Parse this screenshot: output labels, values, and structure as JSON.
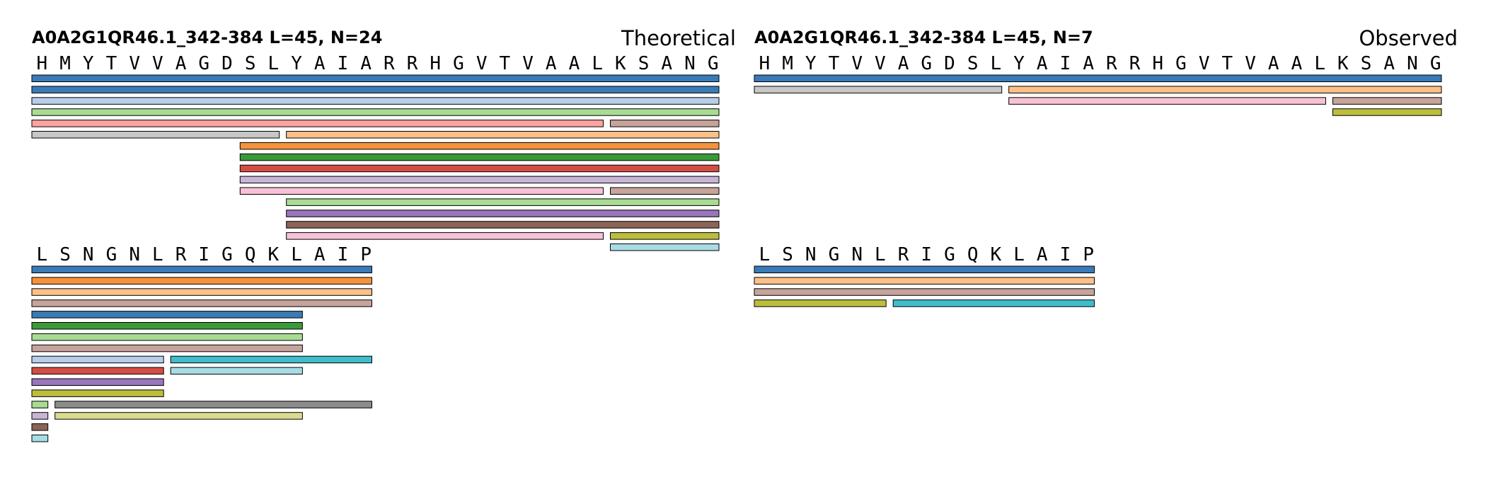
{
  "panels": [
    {
      "name": "theoretical",
      "title": "A0A2G1QR46.1_342-384  L=45, N=24",
      "label": "Theoretical",
      "blocks": [
        {
          "residues": [
            "H",
            "M",
            "Y",
            "T",
            "V",
            "V",
            "A",
            "G",
            "D",
            "S",
            "L",
            "Y",
            "A",
            "I",
            "A",
            "R",
            "R",
            "H",
            "G",
            "V",
            "T",
            "V",
            "A",
            "A",
            "L",
            "K",
            "S",
            "A",
            "N",
            "G"
          ],
          "rows": [
            [
              {
                "start": 1,
                "end": 30,
                "color": "#3a7ab6"
              }
            ],
            [
              {
                "start": 1,
                "end": 30,
                "color": "#3a7ab6"
              }
            ],
            [
              {
                "start": 1,
                "end": 30,
                "color": "#b7cde9"
              }
            ],
            [
              {
                "start": 1,
                "end": 30,
                "color": "#a8dc93"
              }
            ],
            [
              {
                "start": 1,
                "end": 25,
                "color": "#fca3a1"
              },
              {
                "start": 26,
                "end": 30,
                "color": "#c6a39b"
              }
            ],
            [
              {
                "start": 1,
                "end": 11,
                "color": "#c7c7c7"
              },
              {
                "start": 12,
                "end": 30,
                "color": "#fdc088"
              }
            ],
            [
              {
                "start": 10,
                "end": 30,
                "color": "#f5923c"
              }
            ],
            [
              {
                "start": 10,
                "end": 30,
                "color": "#3a9a3a"
              }
            ],
            [
              {
                "start": 10,
                "end": 30,
                "color": "#d44d44"
              }
            ],
            [
              {
                "start": 10,
                "end": 30,
                "color": "#c8b5d6"
              }
            ],
            [
              {
                "start": 10,
                "end": 25,
                "color": "#f9c1d6"
              },
              {
                "start": 26,
                "end": 30,
                "color": "#c6a39b"
              }
            ],
            [
              {
                "start": 12,
                "end": 30,
                "color": "#a8dc93"
              }
            ],
            [
              {
                "start": 12,
                "end": 30,
                "color": "#9a76bc"
              }
            ],
            [
              {
                "start": 12,
                "end": 30,
                "color": "#8d6358"
              }
            ],
            [
              {
                "start": 12,
                "end": 25,
                "color": "#f9c1d6"
              },
              {
                "start": 26,
                "end": 30,
                "color": "#bdbd3c"
              }
            ],
            [
              {
                "start": 26,
                "end": 30,
                "color": "#a8dce4"
              }
            ]
          ]
        },
        {
          "residues": [
            "L",
            "S",
            "N",
            "G",
            "N",
            "L",
            "R",
            "I",
            "G",
            "Q",
            "K",
            "L",
            "A",
            "I",
            "P"
          ],
          "rows": [
            [
              {
                "start": 1,
                "end": 15,
                "color": "#3a7ab6"
              }
            ],
            [
              {
                "start": 1,
                "end": 15,
                "color": "#f5923c"
              }
            ],
            [
              {
                "start": 1,
                "end": 15,
                "color": "#fdc088"
              }
            ],
            [
              {
                "start": 1,
                "end": 15,
                "color": "#c6a39b"
              }
            ],
            [
              {
                "start": 1,
                "end": 12,
                "color": "#3a7ab6"
              }
            ],
            [
              {
                "start": 1,
                "end": 12,
                "color": "#3a9a3a"
              }
            ],
            [
              {
                "start": 1,
                "end": 12,
                "color": "#a8dc93"
              }
            ],
            [
              {
                "start": 1,
                "end": 12,
                "color": "#c6a39b"
              }
            ],
            [
              {
                "start": 1,
                "end": 6,
                "color": "#b7cde9"
              },
              {
                "start": 7,
                "end": 15,
                "color": "#40bccb"
              }
            ],
            [
              {
                "start": 1,
                "end": 6,
                "color": "#d44d44"
              },
              {
                "start": 7,
                "end": 12,
                "color": "#a8dce4"
              }
            ],
            [
              {
                "start": 1,
                "end": 6,
                "color": "#9a76bc"
              }
            ],
            [
              {
                "start": 1,
                "end": 6,
                "color": "#bdbd3c"
              }
            ],
            [
              {
                "start": 1,
                "end": 1,
                "color": "#a8dc93"
              },
              {
                "start": 2,
                "end": 15,
                "color": "#8c8c8c"
              }
            ],
            [
              {
                "start": 1,
                "end": 1,
                "color": "#c8b5d6"
              },
              {
                "start": 2,
                "end": 12,
                "color": "#dbdb90"
              }
            ],
            [
              {
                "start": 1,
                "end": 1,
                "color": "#8d6358"
              }
            ],
            [
              {
                "start": 1,
                "end": 1,
                "color": "#a8dce4"
              }
            ]
          ]
        }
      ]
    },
    {
      "name": "observed",
      "title": "A0A2G1QR46.1_342-384  L=45, N=7",
      "label": "Observed",
      "blocks": [
        {
          "residues": [
            "H",
            "M",
            "Y",
            "T",
            "V",
            "V",
            "A",
            "G",
            "D",
            "S",
            "L",
            "Y",
            "A",
            "I",
            "A",
            "R",
            "R",
            "H",
            "G",
            "V",
            "T",
            "V",
            "A",
            "A",
            "L",
            "K",
            "S",
            "A",
            "N",
            "G"
          ],
          "rows": [
            [
              {
                "start": 1,
                "end": 30,
                "color": "#3a7ab6"
              }
            ],
            [
              {
                "start": 1,
                "end": 11,
                "color": "#c7c7c7"
              },
              {
                "start": 12,
                "end": 30,
                "color": "#fdc088"
              }
            ],
            [
              {
                "start": 12,
                "end": 25,
                "color": "#f9c1d6"
              },
              {
                "start": 26,
                "end": 30,
                "color": "#c6a39b"
              }
            ],
            [
              {
                "start": 26,
                "end": 30,
                "color": "#bdbd3c"
              }
            ]
          ]
        },
        {
          "residues": [
            "L",
            "S",
            "N",
            "G",
            "N",
            "L",
            "R",
            "I",
            "G",
            "Q",
            "K",
            "L",
            "A",
            "I",
            "P"
          ],
          "rows": [
            [
              {
                "start": 1,
                "end": 15,
                "color": "#3a7ab6"
              }
            ],
            [
              {
                "start": 1,
                "end": 15,
                "color": "#fdc088"
              }
            ],
            [
              {
                "start": 1,
                "end": 15,
                "color": "#c6a39b"
              }
            ],
            [
              {
                "start": 1,
                "end": 6,
                "color": "#bdbd3c"
              },
              {
                "start": 7,
                "end": 15,
                "color": "#40bccb"
              }
            ]
          ]
        }
      ]
    }
  ]
}
